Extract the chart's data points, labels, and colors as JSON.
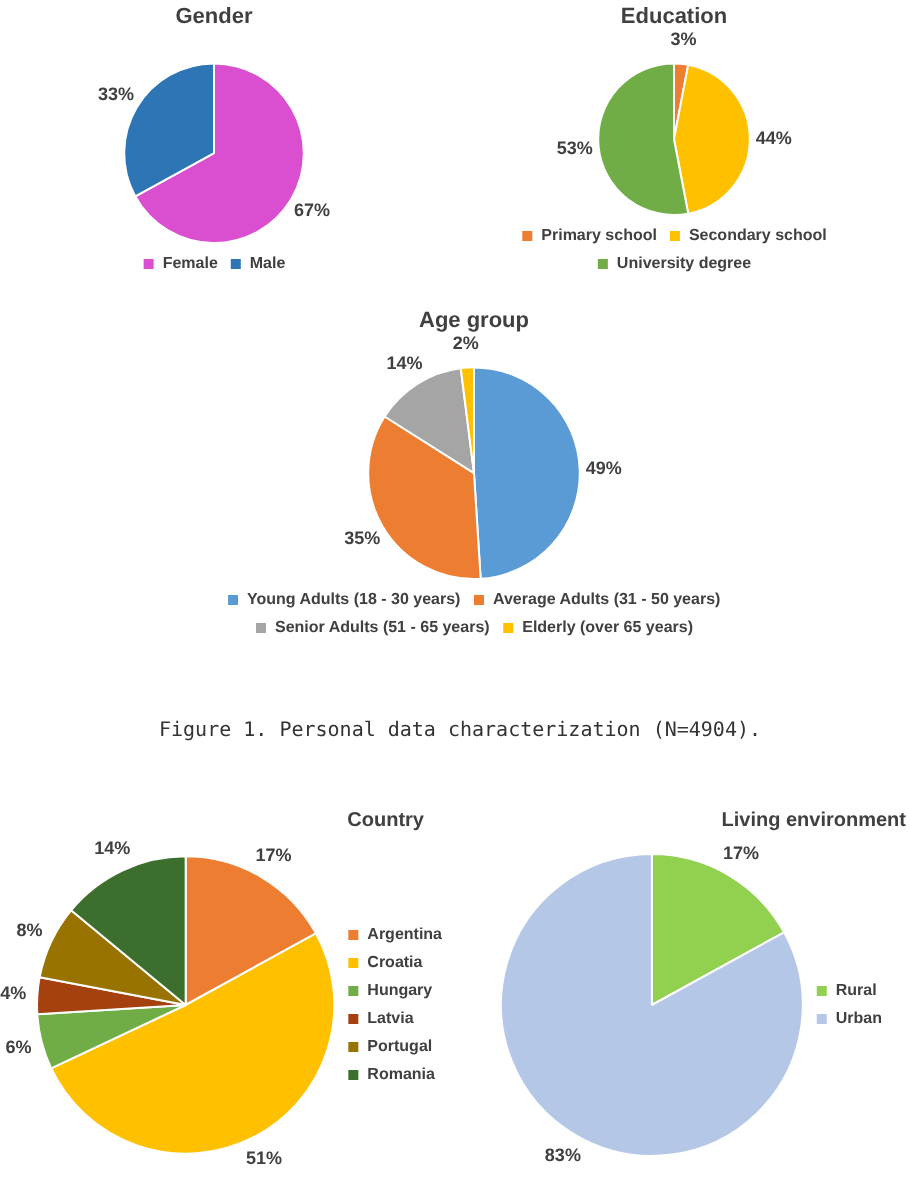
{
  "chart_data": [
    {
      "type": "pie",
      "title": "Gender",
      "categories": [
        "Female",
        "Male"
      ],
      "values": [
        67,
        33
      ],
      "value_labels": [
        "67%",
        "33%"
      ],
      "colors": [
        "#d94fd0",
        "#2e75b6"
      ],
      "legend": "bottom"
    },
    {
      "type": "pie",
      "title": "Education",
      "categories": [
        "Primary school",
        "Secondary school",
        "University degree"
      ],
      "values": [
        3,
        44,
        53
      ],
      "value_labels": [
        "3%",
        "44%",
        "53%"
      ],
      "colors": [
        "#ed7d31",
        "#ffc000",
        "#70ad47"
      ],
      "legend": "bottom"
    },
    {
      "type": "pie",
      "title": "Age group",
      "categories": [
        "Young Adults (18 - 30 years)",
        "Average Adults (31 - 50 years)",
        "Senior Adults (51 - 65 years)",
        "Elderly (over 65 years)"
      ],
      "values": [
        49,
        35,
        14,
        2
      ],
      "value_labels": [
        "49%",
        "35%",
        "14%",
        "2%"
      ],
      "colors": [
        "#5b9bd5",
        "#ed7d31",
        "#a5a5a5",
        "#ffc000"
      ],
      "legend": "bottom",
      "annotations": [
        "Figure 1. Personal data characterization (N=4904)."
      ]
    },
    {
      "type": "pie",
      "legend_title": "Country",
      "categories": [
        "Argentina",
        "Croatia",
        "Hungary",
        "Latvia",
        "Portugal",
        "Romania"
      ],
      "values": [
        17,
        51,
        6,
        4,
        8,
        14
      ],
      "value_labels": [
        "17%",
        "51%",
        "6%",
        "4%",
        "8%",
        "14%"
      ],
      "colors": [
        "#ed7d31",
        "#ffc000",
        "#70ad47",
        "#a5410e",
        "#997300",
        "#3c6e2d"
      ],
      "legend": "right"
    },
    {
      "type": "pie",
      "legend_title": "Living environment",
      "categories": [
        "Rural",
        "Urban"
      ],
      "values": [
        17,
        83
      ],
      "value_labels": [
        "17%",
        "83%"
      ],
      "colors": [
        "#92d050",
        "#b4c7e7"
      ],
      "legend": "right"
    }
  ]
}
